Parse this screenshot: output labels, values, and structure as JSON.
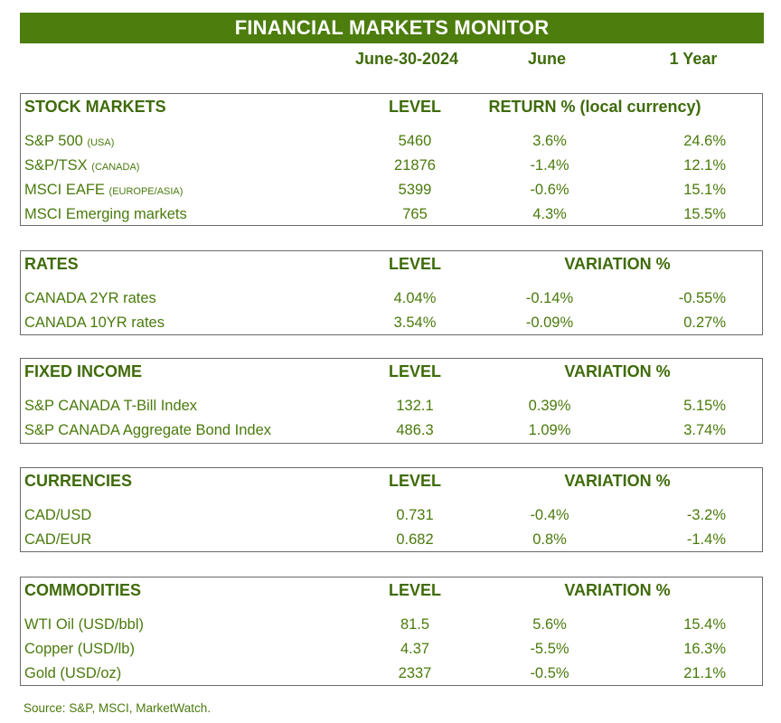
{
  "title": "FINANCIAL MARKETS MONITOR",
  "header": {
    "date": "June-30-2024",
    "month": "June",
    "year": "1 Year"
  },
  "sections": [
    {
      "name": "STOCK MARKETS",
      "level_label": "LEVEL",
      "change_label": "RETURN % (local currency)",
      "rows": [
        {
          "name": "S&P 500",
          "qualifier": "(USA)",
          "level": "5460",
          "month": "3.6%",
          "year": "24.6%"
        },
        {
          "name": "S&P/TSX",
          "qualifier": "(CANADA)",
          "level": "21876",
          "month": "-1.4%",
          "year": "12.1%"
        },
        {
          "name": "MSCI EAFE",
          "qualifier": "(EUROPE/ASIA)",
          "level": "5399",
          "month": "-0.6%",
          "year": "15.1%"
        },
        {
          "name": "MSCI Emerging markets",
          "qualifier": "",
          "level": "765",
          "month": "4.3%",
          "year": "15.5%"
        }
      ]
    },
    {
      "name": "RATES",
      "level_label": "LEVEL",
      "change_label": "VARIATION %",
      "rows": [
        {
          "name": "CANADA 2YR rates",
          "qualifier": "",
          "level": "4.04%",
          "month": "-0.14%",
          "year": "-0.55%"
        },
        {
          "name": "CANADA 10YR rates",
          "qualifier": "",
          "level": "3.54%",
          "month": "-0.09%",
          "year": "0.27%"
        }
      ]
    },
    {
      "name": "FIXED INCOME",
      "level_label": "LEVEL",
      "change_label": "VARIATION %",
      "rows": [
        {
          "name": "S&P CANADA T-Bill Index",
          "qualifier": "",
          "level": "132.1",
          "month": "0.39%",
          "year": "5.15%"
        },
        {
          "name": "S&P CANADA Aggregate Bond Index",
          "qualifier": "",
          "level": "486.3",
          "month": "1.09%",
          "year": "3.74%"
        }
      ]
    },
    {
      "name": "CURRENCIES",
      "level_label": "LEVEL",
      "change_label": "VARIATION %",
      "rows": [
        {
          "name": "CAD/USD",
          "qualifier": "",
          "level": "0.731",
          "month": "-0.4%",
          "year": "-3.2%"
        },
        {
          "name": "CAD/EUR",
          "qualifier": "",
          "level": "0.682",
          "month": "0.8%",
          "year": "-1.4%"
        }
      ]
    },
    {
      "name": "COMMODITIES",
      "level_label": "LEVEL",
      "change_label": "VARIATION %",
      "rows": [
        {
          "name": "WTI Oil (USD/bbl)",
          "qualifier": "",
          "level": "81.5",
          "month": "5.6%",
          "year": "15.4%"
        },
        {
          "name": "Copper (USD/lb)",
          "qualifier": "",
          "level": "4.37",
          "month": "-5.5%",
          "year": "16.3%"
        },
        {
          "name": "Gold (USD/oz)",
          "qualifier": "",
          "level": "2337",
          "month": "-0.5%",
          "year": "21.1%"
        }
      ]
    }
  ],
  "source": "Source: S&P, MSCI, MarketWatch.",
  "colors": {
    "title_bg": "#4c7d0d",
    "text": "#4a7a0c",
    "heading": "#3f6b0a",
    "border": "#6a6a6a"
  }
}
